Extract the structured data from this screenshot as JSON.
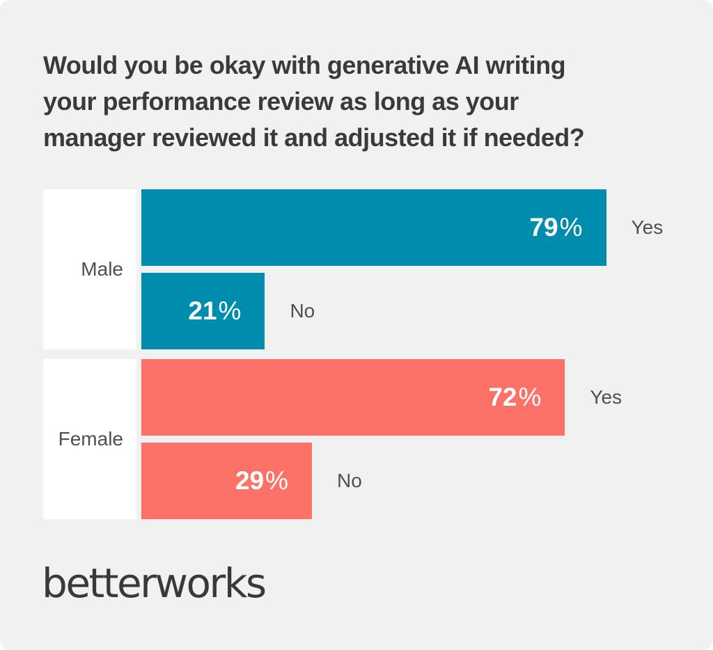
{
  "page": {
    "background": "#F1F1F2",
    "percent_sign": "%"
  },
  "title_lines": [
    "Would you be okay with generative AI writing",
    "your performance review as long as your",
    "manager reviewed it and adjusted it if needed?"
  ],
  "chart_data": {
    "type": "bar",
    "orientation": "horizontal",
    "title": "Would you be okay with generative AI writing your performance review as long as your manager reviewed it and adjusted it if needed?",
    "unit": "%",
    "xlim": [
      0,
      100
    ],
    "grid": false,
    "legend": "none",
    "value_labels": "inside-end",
    "answer_labels": "outside-end",
    "categories": [
      "Male",
      "Female"
    ],
    "series": [
      {
        "name": "Yes",
        "values": [
          79,
          72
        ]
      },
      {
        "name": "No",
        "values": [
          21,
          29
        ]
      }
    ],
    "groups": [
      {
        "category": "Male",
        "color": "#008CAD",
        "bars": [
          {
            "answer": "Yes",
            "value": 79
          },
          {
            "answer": "No",
            "value": 21
          }
        ]
      },
      {
        "category": "Female",
        "color": "#FC7168",
        "bars": [
          {
            "answer": "Yes",
            "value": 72
          },
          {
            "answer": "No",
            "value": 29
          }
        ]
      }
    ],
    "colors": {
      "male_bars": "#008CAD",
      "female_bars": "#FC7168"
    },
    "value_label_color": "#FFFFFF",
    "axis_text_color": "#4F4F52",
    "title_color": "#3A3A3C"
  },
  "footer": {
    "logo_text": "betterworks"
  }
}
